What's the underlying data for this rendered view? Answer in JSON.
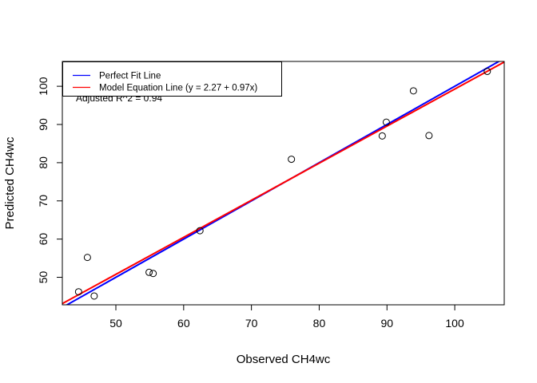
{
  "chart_data": {
    "type": "scatter",
    "xlabel": "Observed CH4wc",
    "ylabel": "Predicted CH4wc",
    "xlim": [
      42.1,
      107.3
    ],
    "ylim": [
      42.8,
      106.5
    ],
    "x_ticks": [
      50,
      60,
      70,
      80,
      90,
      100
    ],
    "y_ticks": [
      50,
      60,
      70,
      80,
      90,
      100
    ],
    "x_tick_labels": [
      "50",
      "60",
      "70",
      "80",
      "90",
      "100"
    ],
    "y_tick_labels": [
      "50",
      "60",
      "70",
      "80",
      "90",
      "100"
    ],
    "grid": false,
    "legend_position": "top-left",
    "points": [
      {
        "x": 44.5,
        "y": 46.2
      },
      {
        "x": 45.8,
        "y": 55.2
      },
      {
        "x": 46.8,
        "y": 45.1
      },
      {
        "x": 54.9,
        "y": 51.3
      },
      {
        "x": 55.5,
        "y": 51.0
      },
      {
        "x": 62.4,
        "y": 62.2
      },
      {
        "x": 75.9,
        "y": 80.9
      },
      {
        "x": 89.3,
        "y": 87.0
      },
      {
        "x": 89.9,
        "y": 90.6
      },
      {
        "x": 93.9,
        "y": 98.8
      },
      {
        "x": 96.2,
        "y": 87.1
      },
      {
        "x": 104.8,
        "y": 103.9
      }
    ],
    "lines": [
      {
        "name": "Perfect Fit Line",
        "intercept": 0,
        "slope": 1,
        "color": "#0000ff"
      },
      {
        "name": "Model Equation Line (y = 2.27 + 0.97x)",
        "intercept": 2.27,
        "slope": 0.97,
        "color": "#ff0000"
      }
    ],
    "annotation": "Adjusted R^2 = 0.94"
  }
}
